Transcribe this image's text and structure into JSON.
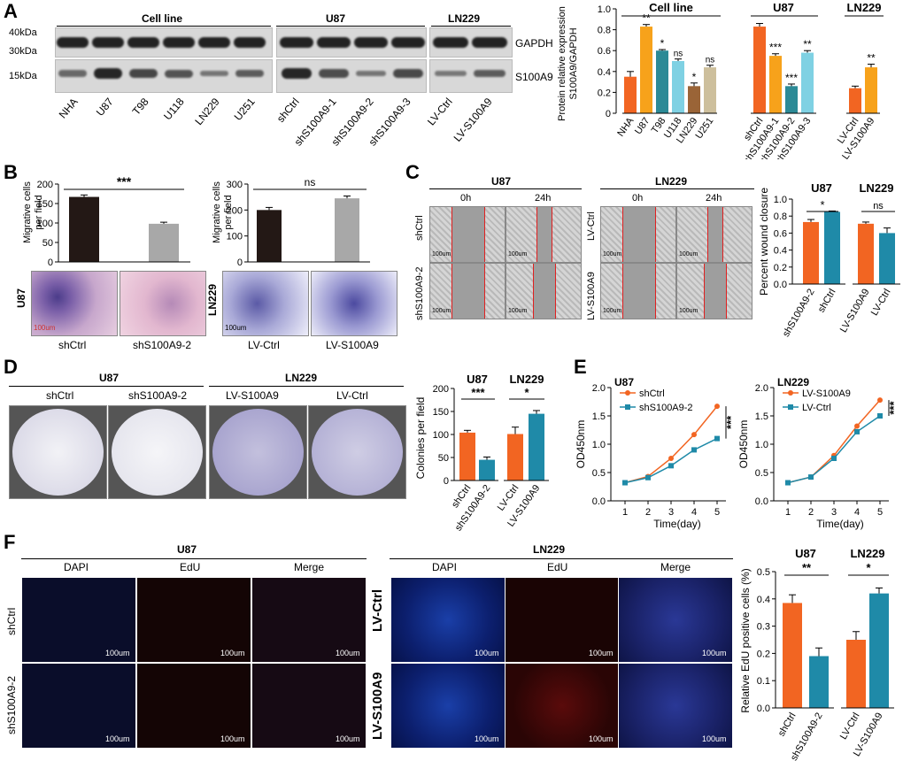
{
  "panels": {
    "A": "A",
    "B": "B",
    "C": "C",
    "D": "D",
    "E": "E",
    "F": "F"
  },
  "panelA": {
    "groups": [
      "Cell line",
      "U87",
      "LN229"
    ],
    "markers": [
      "40kDa",
      "30kDa",
      "15kDa"
    ],
    "proteins": [
      "GAPDH",
      "S100A9"
    ],
    "lanes": [
      "NHA",
      "U87",
      "T98",
      "U118",
      "LN229",
      "U251",
      "shCtrl",
      "shS100A9-1",
      "shS100A9-2",
      "shS100A9-3",
      "LV-Ctrl",
      "LV-S100A9"
    ]
  },
  "panelB": {
    "ylabel_line1": "Migrative cells",
    "ylabel_line2": "per field",
    "sig_left": "***",
    "sig_right": "ns",
    "side_left": "U87",
    "side_right": "LN229",
    "labels": [
      "shCtrl",
      "shS100A9-2",
      "LV-Ctrl",
      "LV-S100A9"
    ],
    "scale": "100um"
  },
  "panelC": {
    "groups": [
      "U87",
      "LN229"
    ],
    "times": [
      "0h",
      "24h",
      "0h",
      "24h"
    ],
    "rows": [
      "shCtrl",
      "shS100A9-2",
      "LV-Ctrl",
      "LV-S100A9"
    ],
    "scale": "100um",
    "ylabel": "Percent wound closure",
    "sig": [
      "*",
      "ns"
    ]
  },
  "panelD": {
    "groups": [
      "U87",
      "LN229"
    ],
    "labels": [
      "shCtrl",
      "shS100A9-2",
      "LV-S100A9",
      "LV-Ctrl"
    ],
    "ylabel": "Colonies per field",
    "sig": [
      "***",
      "*"
    ]
  },
  "panelE": {
    "titles": [
      "U87",
      "LN229"
    ],
    "ylabel": "OD450nm",
    "xlabel": "Time(day)",
    "legend_left": [
      "shCtrl",
      "shS100A9-2"
    ],
    "legend_right": [
      "LV-S100A9",
      "LV-Ctrl"
    ],
    "sig": "***"
  },
  "panelF": {
    "groups": [
      "U87",
      "LN229"
    ],
    "channels": [
      "DAPI",
      "EdU",
      "Merge",
      "DAPI",
      "EdU",
      "Merge"
    ],
    "rows": [
      "shCtrl",
      "shS100A9-2",
      "LV-Ctrl",
      "LV-S100A9"
    ],
    "scale": "100um",
    "ylabel": "Relative EdU positive cells (%)",
    "sig": [
      "**",
      "*"
    ]
  },
  "colors": {
    "orange": "#f26522",
    "teal": "#1f8aa8",
    "black": "#231815",
    "gray": "#a8a8a8",
    "gold": "#f7a21b",
    "lightblue": "#7fd1e3",
    "brown": "#9a6437",
    "beige": "#cdbf9c",
    "darkteal": "#2c8a96"
  },
  "chart_data": [
    {
      "id": "A-bar",
      "type": "bar",
      "ylabel": "Protein relative expression S100A9/GAPDH",
      "ylim": [
        0,
        1.0
      ],
      "groups": [
        "Cell line",
        "U87",
        "LN229"
      ],
      "categories": [
        "NHA",
        "U87",
        "T98",
        "U118",
        "LN229",
        "U251",
        "shCtrl",
        "shS100A9-1",
        "shS100A9-2",
        "shS100A9-3",
        "LV-Ctrl",
        "LV-S100A9"
      ],
      "values": [
        0.35,
        0.83,
        0.6,
        0.5,
        0.26,
        0.44,
        0.83,
        0.55,
        0.26,
        0.58,
        0.24,
        0.44
      ],
      "errors": [
        0.05,
        0.02,
        0.01,
        0.02,
        0.03,
        0.02,
        0.03,
        0.02,
        0.02,
        0.02,
        0.02,
        0.03
      ],
      "sig": [
        "",
        "**",
        "*",
        "ns",
        "*",
        "ns",
        "",
        "***",
        "***",
        "**",
        "",
        "**"
      ],
      "ticks": [
        "0",
        "0.2",
        "0.4",
        "0.6",
        "0.8",
        "1.0"
      ]
    },
    {
      "id": "B-left",
      "type": "bar",
      "ylabel": "Migrative cells per field",
      "ylim": [
        0,
        200
      ],
      "categories": [
        "shCtrl",
        "shS100A9-2"
      ],
      "values": [
        167,
        98
      ],
      "errors": [
        5,
        4
      ],
      "ticks": [
        "0",
        "50",
        "100",
        "150",
        "200"
      ],
      "sig": "***"
    },
    {
      "id": "B-right",
      "type": "bar",
      "ylabel": "Migrative cells per field",
      "ylim": [
        0,
        300
      ],
      "categories": [
        "LV-Ctrl",
        "LV-S100A9"
      ],
      "values": [
        200,
        245
      ],
      "errors": [
        10,
        9
      ],
      "ticks": [
        "0",
        "100",
        "200",
        "300"
      ],
      "sig": "ns"
    },
    {
      "id": "C-bar",
      "type": "bar",
      "ylabel": "Percent wound closure",
      "ylim": [
        0,
        1.0
      ],
      "groups": [
        "U87",
        "LN229"
      ],
      "categories": [
        "shS100A9-2",
        "shCtrl",
        "LV-S100A9",
        "LV-Ctrl"
      ],
      "values": [
        0.73,
        0.85,
        0.71,
        0.6
      ],
      "errors": [
        0.03,
        0.01,
        0.02,
        0.06
      ],
      "ticks": [
        "0.0",
        "0.2",
        "0.4",
        "0.6",
        "0.8",
        "1.0"
      ]
    },
    {
      "id": "D-bar",
      "type": "bar",
      "ylabel": "Colonies per field",
      "ylim": [
        0,
        200
      ],
      "groups": [
        "U87",
        "LN229"
      ],
      "categories": [
        "shCtrl",
        "shS100A9-2",
        "LV-Ctrl",
        "LV-S100A9"
      ],
      "values": [
        104,
        45,
        101,
        145
      ],
      "errors": [
        5,
        6,
        15,
        7
      ],
      "ticks": [
        "0",
        "50",
        "100",
        "150",
        "200"
      ]
    },
    {
      "id": "E-left",
      "type": "line",
      "title": "U87",
      "xlabel": "Time(day)",
      "ylabel": "OD450nm",
      "ylim": [
        0,
        2.0
      ],
      "x": [
        1,
        2,
        3,
        4,
        5
      ],
      "ticks": [
        "0.0",
        "0.5",
        "1.0",
        "1.5",
        "2.0"
      ],
      "series": [
        {
          "name": "shCtrl",
          "values": [
            0.32,
            0.43,
            0.75,
            1.17,
            1.67
          ]
        },
        {
          "name": "shS100A9-2",
          "values": [
            0.32,
            0.41,
            0.62,
            0.9,
            1.1
          ]
        }
      ]
    },
    {
      "id": "E-right",
      "type": "line",
      "title": "LN229",
      "xlabel": "Time(day)",
      "ylabel": "OD450nm",
      "ylim": [
        0,
        2.0
      ],
      "x": [
        1,
        2,
        3,
        4,
        5
      ],
      "ticks": [
        "0.0",
        "0.5",
        "1.0",
        "1.5",
        "2.0"
      ],
      "series": [
        {
          "name": "LV-S100A9",
          "values": [
            0.32,
            0.42,
            0.8,
            1.32,
            1.78
          ]
        },
        {
          "name": "LV-Ctrl",
          "values": [
            0.32,
            0.42,
            0.75,
            1.22,
            1.5
          ]
        }
      ]
    },
    {
      "id": "F-bar",
      "type": "bar",
      "ylabel": "Relative EdU positive cells (%)",
      "ylim": [
        0,
        0.5
      ],
      "groups": [
        "U87",
        "LN229"
      ],
      "categories": [
        "shCtrl",
        "shS100A9-2",
        "LV-Ctrl",
        "LV-S100A9"
      ],
      "values": [
        0.385,
        0.19,
        0.25,
        0.42
      ],
      "errors": [
        0.03,
        0.03,
        0.03,
        0.02
      ],
      "ticks": [
        "0.0",
        "0.1",
        "0.2",
        "0.3",
        "0.4",
        "0.5"
      ]
    }
  ]
}
